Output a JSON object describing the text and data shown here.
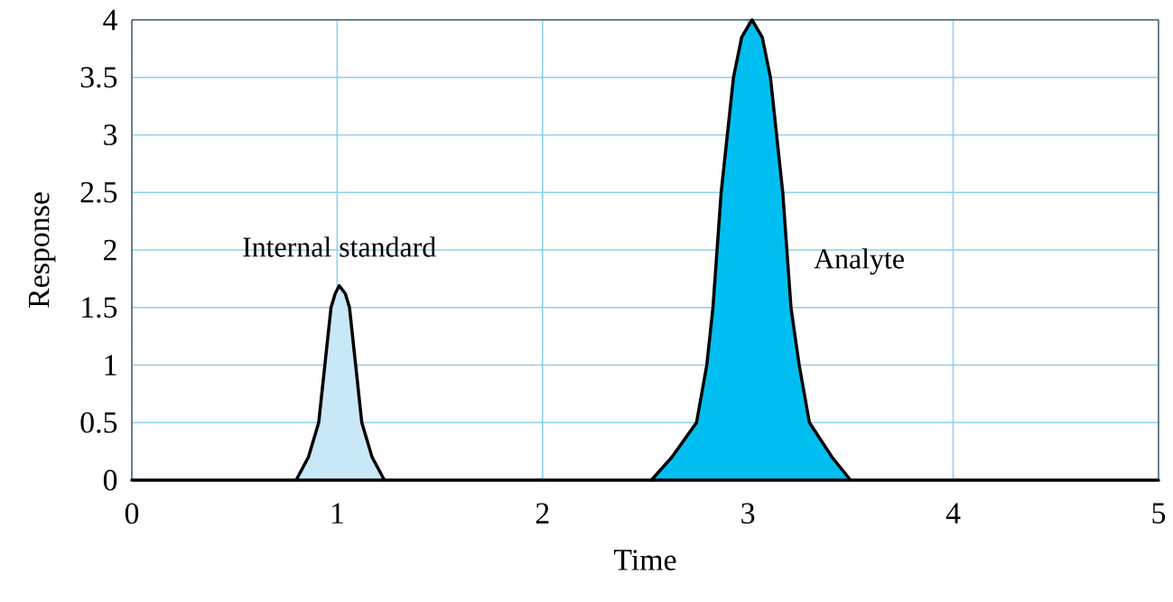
{
  "chart_data": {
    "type": "area",
    "xlabel": "Time",
    "ylabel": "Response",
    "series": [
      {
        "name": "Internal standard",
        "color": "#c8e8f7",
        "x": [
          0,
          0.8,
          0.86,
          0.91,
          0.94,
          0.97,
          0.99,
          1.01,
          1.04,
          1.06,
          1.09,
          1.12,
          1.17,
          1.23,
          2.53
        ],
        "values": [
          0,
          0,
          0.2,
          0.5,
          1,
          1.5,
          1.62,
          1.69,
          1.62,
          1.5,
          1,
          0.5,
          0.2,
          0,
          0
        ]
      },
      {
        "name": "Analyte",
        "color": "#00bff0",
        "x": [
          2.53,
          2.63,
          2.75,
          2.8,
          2.83,
          2.85,
          2.87,
          2.9,
          2.93,
          2.97,
          3.02,
          3.07,
          3.11,
          3.14,
          3.17,
          3.19,
          3.21,
          3.25,
          3.3,
          3.41,
          3.5,
          5
        ],
        "values": [
          0,
          0.2,
          0.5,
          1,
          1.5,
          2,
          2.5,
          3,
          3.5,
          3.85,
          4,
          3.85,
          3.5,
          3,
          2.5,
          2,
          1.5,
          1,
          0.5,
          0.2,
          0,
          0
        ]
      }
    ],
    "xlim": [
      0,
      5
    ],
    "ylim": [
      0,
      4
    ],
    "xticks": [
      0,
      1,
      2,
      3,
      4,
      5
    ],
    "yticks": [
      0,
      0.5,
      1,
      1.5,
      2,
      2.5,
      3,
      3.5,
      4
    ],
    "grid": true
  }
}
